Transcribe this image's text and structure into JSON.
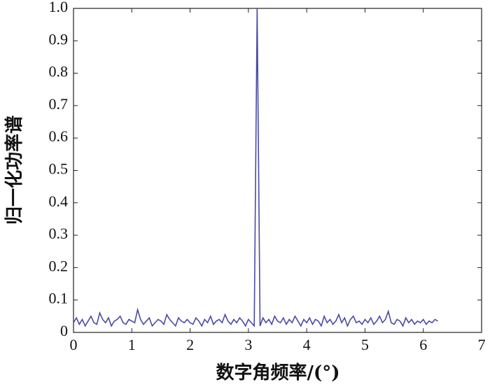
{
  "chart_data": {
    "type": "line",
    "xlabel": "数字角频率/(°)",
    "ylabel": "归一化功率谱",
    "xlim": [
      0,
      7
    ],
    "xticks": [
      0,
      1,
      2,
      3,
      4,
      5,
      6,
      7
    ],
    "ylim": [
      0,
      1
    ],
    "yticks": [
      0,
      0.1,
      0.2,
      0.3,
      0.4,
      0.5,
      0.6,
      0.7,
      0.8,
      0.9,
      {
        "value": 1,
        "label": "1.0"
      }
    ],
    "grid": false,
    "series": [
      {
        "color": "#4a4aa8",
        "x": [
          0,
          0.05,
          0.1,
          0.15,
          0.2,
          0.25,
          0.3,
          0.35,
          0.4,
          0.45,
          0.5,
          0.55,
          0.6,
          0.65,
          0.7,
          0.75,
          0.8,
          0.85,
          0.9,
          0.95,
          1,
          1.05,
          1.1,
          1.15,
          1.2,
          1.25,
          1.3,
          1.35,
          1.4,
          1.45,
          1.5,
          1.55,
          1.6,
          1.65,
          1.7,
          1.75,
          1.8,
          1.85,
          1.9,
          1.95,
          2,
          2.05,
          2.1,
          2.15,
          2.2,
          2.25,
          2.3,
          2.35,
          2.4,
          2.45,
          2.5,
          2.55,
          2.6,
          2.65,
          2.7,
          2.75,
          2.8,
          2.85,
          2.9,
          2.95,
          3,
          3.05,
          3.1,
          3.15,
          3.2,
          3.25,
          3.3,
          3.35,
          3.4,
          3.45,
          3.5,
          3.55,
          3.6,
          3.65,
          3.7,
          3.75,
          3.8,
          3.85,
          3.9,
          3.95,
          4,
          4.05,
          4.1,
          4.15,
          4.2,
          4.25,
          4.3,
          4.35,
          4.4,
          4.45,
          4.5,
          4.55,
          4.6,
          4.65,
          4.7,
          4.75,
          4.8,
          4.85,
          4.9,
          4.95,
          5,
          5.05,
          5.1,
          5.15,
          5.2,
          5.25,
          5.3,
          5.35,
          5.4,
          5.45,
          5.5,
          5.55,
          5.6,
          5.65,
          5.7,
          5.75,
          5.8,
          5.85,
          5.9,
          5.95,
          6,
          6.05,
          6.1,
          6.15,
          6.2,
          6.25
        ],
        "values": [
          0.03,
          0.045,
          0.025,
          0.04,
          0.02,
          0.035,
          0.05,
          0.03,
          0.025,
          0.06,
          0.04,
          0.03,
          0.045,
          0.02,
          0.035,
          0.04,
          0.05,
          0.03,
          0.025,
          0.04,
          0.035,
          0.03,
          0.07,
          0.04,
          0.025,
          0.035,
          0.045,
          0.02,
          0.03,
          0.04,
          0.035,
          0.025,
          0.055,
          0.04,
          0.03,
          0.02,
          0.045,
          0.035,
          0.03,
          0.04,
          0.03,
          0.025,
          0.045,
          0.035,
          0.02,
          0.04,
          0.03,
          0.05,
          0.025,
          0.035,
          0.04,
          0.03,
          0.055,
          0.035,
          0.025,
          0.04,
          0.03,
          0.045,
          0.035,
          0.02,
          0.04,
          0.03,
          0.02,
          1.0,
          0.02,
          0.045,
          0.03,
          0.04,
          0.025,
          0.05,
          0.035,
          0.03,
          0.045,
          0.025,
          0.04,
          0.03,
          0.05,
          0.035,
          0.02,
          0.04,
          0.03,
          0.045,
          0.025,
          0.04,
          0.035,
          0.02,
          0.05,
          0.03,
          0.04,
          0.025,
          0.035,
          0.055,
          0.03,
          0.045,
          0.02,
          0.04,
          0.05,
          0.03,
          0.035,
          0.025,
          0.04,
          0.03,
          0.045,
          0.025,
          0.035,
          0.05,
          0.03,
          0.04,
          0.065,
          0.03,
          0.025,
          0.04,
          0.035,
          0.02,
          0.045,
          0.03,
          0.04,
          0.025,
          0.035,
          0.03,
          0.04,
          0.025,
          0.035,
          0.03,
          0.04,
          0.035
        ]
      }
    ]
  }
}
